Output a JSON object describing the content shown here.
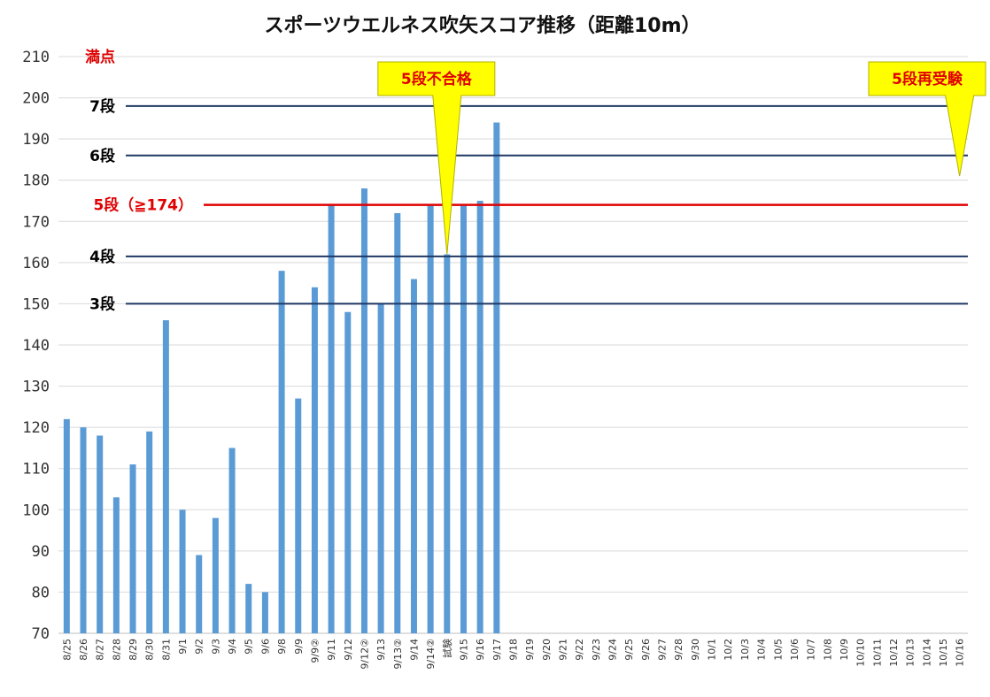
{
  "chart_data": {
    "type": "bar",
    "title": "スポーツウエルネス吹矢スコア推移（距離10m）",
    "ylim": [
      70,
      210
    ],
    "yticks": [
      70,
      80,
      90,
      100,
      110,
      120,
      130,
      140,
      150,
      160,
      170,
      180,
      190,
      200,
      210
    ],
    "grid": true,
    "categories": [
      "8/25",
      "8/26",
      "8/27",
      "8/28",
      "8/29",
      "8/30",
      "8/31",
      "9/1",
      "9/2",
      "9/3",
      "9/4",
      "9/5",
      "9/6",
      "9/8",
      "9/9",
      "9/9②",
      "9/11",
      "9/12",
      "9/12②",
      "9/13",
      "9/13②",
      "9/14",
      "9/14②",
      "試験",
      "9/15",
      "9/16",
      "9/17",
      "9/18",
      "9/19",
      "9/20",
      "9/21",
      "9/22",
      "9/23",
      "9/24",
      "9/25",
      "9/26",
      "9/27",
      "9/28",
      "9/30",
      "10/1",
      "10/2",
      "10/3",
      "10/4",
      "10/5",
      "10/6",
      "10/7",
      "10/8",
      "10/9",
      "10/10",
      "10/11",
      "10/12",
      "10/13",
      "10/14",
      "10/15",
      "10/16"
    ],
    "values": [
      122,
      120,
      118,
      103,
      111,
      119,
      146,
      100,
      89,
      98,
      115,
      82,
      80,
      158,
      127,
      154,
      174,
      148,
      178,
      150,
      172,
      156,
      174,
      162,
      174,
      175,
      194,
      null,
      null,
      null,
      null,
      null,
      null,
      null,
      null,
      null,
      null,
      null,
      null,
      null,
      null,
      null,
      null,
      null,
      null,
      null,
      null,
      null,
      null,
      null,
      null,
      null,
      null,
      null,
      null
    ],
    "bar_color": "#5b9bd5",
    "reference_lines": [
      {
        "label": "満点",
        "value": 210,
        "color": "#e00000",
        "line": false
      },
      {
        "label": "7段",
        "value": 198,
        "color": "#1f3864",
        "line": true
      },
      {
        "label": "6段",
        "value": 186,
        "color": "#1f3864",
        "line": true
      },
      {
        "label": "5段（≧174）",
        "value": 174,
        "color": "#e00000",
        "line": true
      },
      {
        "label": "4段",
        "value": 161.5,
        "color": "#1f3864",
        "line": true
      },
      {
        "label": "3段",
        "value": 150,
        "color": "#1f3864",
        "line": true
      }
    ],
    "annotations": [
      {
        "text": "5段不合格",
        "category": "試験",
        "value": 162,
        "fill": "#ffff00"
      },
      {
        "text": "5段再受験",
        "category": "10/16",
        "value": 181,
        "fill": "#ffff00"
      }
    ]
  }
}
